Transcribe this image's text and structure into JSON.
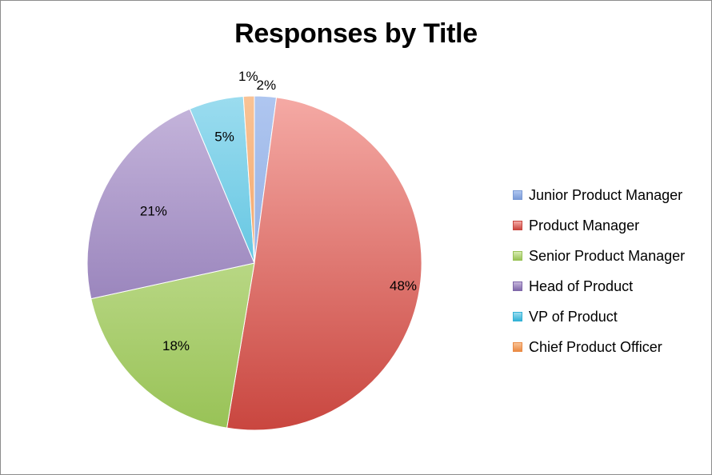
{
  "chart_data": {
    "type": "pie",
    "title": "Responses by Title",
    "legend_position": "right",
    "categories": [
      "Junior Product Manager",
      "Product Manager",
      "Senior Product Manager",
      "Head of Product",
      "VP of Product",
      "Chief Product Officer"
    ],
    "values": [
      2,
      48,
      18,
      21,
      5,
      1
    ],
    "labels": [
      "2%",
      "48%",
      "18%",
      "21%",
      "5%",
      "1%"
    ],
    "colors": [
      "#9bb8ea",
      "#e36a65",
      "#b9d982",
      "#a58fc4",
      "#5fc7e3",
      "#f5a96a"
    ],
    "colors_light": [
      "#afc6f0",
      "#f5aaa5",
      "#d8ecb2",
      "#c6b6dc",
      "#9bdcef",
      "#f9c396"
    ],
    "colors_dark": [
      "#7a9ad6",
      "#c9463f",
      "#98c256",
      "#7f67a9",
      "#32b2d6",
      "#ea8a44"
    ]
  }
}
